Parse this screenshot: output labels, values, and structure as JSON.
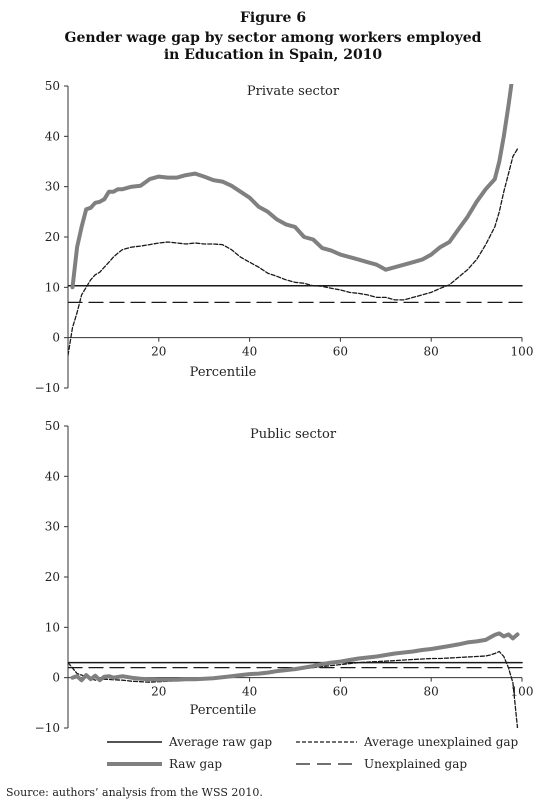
{
  "figure": {
    "label": "Figure 6",
    "title_lines": [
      "Gender wage gap by sector among workers employed",
      "in Education in Spain, 2010"
    ]
  },
  "legend": {
    "average_raw_gap": "Average raw gap",
    "average_unexplained_gap": "Average unexplained gap",
    "raw_gap": "Raw gap",
    "unexplained_gap": "Unexplained gap"
  },
  "source": "Source: authors’ analysis from the WSS 2010.",
  "chart_data": [
    {
      "type": "line",
      "panel_label": "Private sector",
      "xlabel": "Percentile",
      "ylabel": "",
      "xlim": [
        0,
        100
      ],
      "ylim": [
        -10,
        50
      ],
      "xticks": [
        20,
        40,
        60,
        80,
        100
      ],
      "yticks": [
        -10,
        0,
        10,
        20,
        30,
        40,
        50
      ],
      "grid": false,
      "series": [
        {
          "key": "raw_gap",
          "style": "thick-gray",
          "x": [
            1,
            2,
            3,
            4,
            5,
            6,
            7,
            8,
            9,
            10,
            11,
            12,
            14,
            16,
            18,
            20,
            22,
            24,
            26,
            28,
            30,
            32,
            34,
            36,
            38,
            40,
            42,
            44,
            46,
            48,
            50,
            52,
            54,
            56,
            58,
            60,
            62,
            64,
            66,
            68,
            70,
            72,
            74,
            76,
            78,
            80,
            82,
            84,
            86,
            88,
            90,
            92,
            94,
            95,
            96,
            97,
            98,
            99
          ],
          "y": [
            10,
            18,
            22,
            25.5,
            25.8,
            26.8,
            27,
            27.5,
            29,
            29,
            29.5,
            29.5,
            30,
            30.2,
            31.5,
            32,
            31.8,
            31.8,
            32.3,
            32.6,
            32,
            31.3,
            31,
            30.2,
            29,
            27.8,
            26,
            25,
            23.5,
            22.5,
            22,
            20,
            19.5,
            17.8,
            17.3,
            16.5,
            16,
            15.5,
            15,
            14.5,
            13.5,
            14,
            14.5,
            15,
            15.5,
            16.5,
            18,
            19,
            21.5,
            24,
            27,
            29.5,
            31.5,
            35,
            40,
            46,
            52.5,
            53
          ]
        },
        {
          "key": "unexplained_gap",
          "style": "thin-dashed",
          "x": [
            0,
            1,
            2,
            3,
            4,
            5,
            6,
            7,
            8,
            9,
            10,
            11,
            12,
            14,
            16,
            18,
            20,
            22,
            24,
            26,
            28,
            30,
            32,
            34,
            36,
            38,
            40,
            42,
            44,
            46,
            48,
            50,
            52,
            54,
            56,
            58,
            60,
            62,
            64,
            66,
            68,
            70,
            72,
            74,
            76,
            78,
            80,
            82,
            84,
            86,
            88,
            90,
            92,
            94,
            95,
            96,
            97,
            98,
            99
          ],
          "y": [
            -3.5,
            2,
            5,
            8.5,
            10,
            11.5,
            12.5,
            13,
            14,
            15,
            16,
            16.8,
            17.5,
            18,
            18.2,
            18.5,
            18.8,
            19,
            18.8,
            18.6,
            18.8,
            18.6,
            18.6,
            18.5,
            17.5,
            16,
            15,
            14,
            12.8,
            12.2,
            11.5,
            11,
            10.8,
            10.3,
            10.2,
            9.8,
            9.5,
            9,
            8.8,
            8.5,
            8,
            8,
            7.5,
            7.5,
            8,
            8.5,
            9,
            9.8,
            10.5,
            12,
            13.5,
            15.5,
            18.5,
            22,
            25,
            29,
            32.5,
            36,
            37.5
          ]
        },
        {
          "key": "average_raw_gap",
          "style": "solid-thin",
          "x": [
            0,
            100
          ],
          "y": [
            10.3,
            10.3
          ]
        },
        {
          "key": "average_unexplained_gap",
          "style": "long-dash",
          "x": [
            0,
            100
          ],
          "y": [
            7,
            7
          ]
        }
      ]
    },
    {
      "type": "line",
      "panel_label": "Public sector",
      "xlabel": "Percentile",
      "ylabel": "",
      "xlim": [
        0,
        100
      ],
      "ylim": [
        -10,
        50
      ],
      "xticks": [
        20,
        40,
        60,
        80,
        100
      ],
      "yticks": [
        -10,
        0,
        10,
        20,
        30,
        40,
        50
      ],
      "grid": false,
      "series": [
        {
          "key": "raw_gap",
          "style": "thick-gray",
          "x": [
            1,
            2,
            3,
            4,
            5,
            6,
            7,
            8,
            9,
            10,
            12,
            14,
            16,
            18,
            20,
            22,
            24,
            26,
            28,
            30,
            32,
            34,
            36,
            38,
            40,
            42,
            44,
            46,
            48,
            50,
            52,
            54,
            56,
            58,
            60,
            62,
            64,
            66,
            68,
            70,
            72,
            74,
            76,
            78,
            80,
            82,
            84,
            86,
            88,
            90,
            92,
            93,
            94,
            95,
            96,
            97,
            98,
            99
          ],
          "y": [
            0,
            0.3,
            -0.5,
            0.5,
            -0.3,
            0.4,
            -0.5,
            0.2,
            0.3,
            0,
            0.3,
            0,
            -0.2,
            -0.3,
            -0.4,
            -0.4,
            -0.4,
            -0.3,
            -0.3,
            -0.2,
            -0.1,
            0.1,
            0.3,
            0.5,
            0.7,
            0.8,
            1,
            1.3,
            1.5,
            1.7,
            2,
            2.3,
            2.7,
            3,
            3.2,
            3.5,
            3.8,
            4,
            4.2,
            4.5,
            4.8,
            5,
            5.2,
            5.5,
            5.7,
            6,
            6.3,
            6.6,
            7,
            7.2,
            7.5,
            8,
            8.5,
            8.8,
            8.2,
            8.6,
            7.8,
            8.6
          ]
        },
        {
          "key": "unexplained_gap",
          "style": "thin-dashed",
          "x": [
            0,
            2,
            4,
            6,
            8,
            10,
            12,
            14,
            16,
            18,
            20,
            22,
            24,
            26,
            28,
            30,
            32,
            34,
            36,
            38,
            40,
            42,
            44,
            46,
            48,
            50,
            52,
            54,
            56,
            58,
            60,
            62,
            64,
            66,
            68,
            70,
            72,
            74,
            76,
            78,
            80,
            82,
            84,
            86,
            88,
            90,
            92,
            93,
            94,
            95,
            96,
            97,
            98,
            99
          ],
          "y": [
            3,
            0.8,
            0.2,
            -0.5,
            -0.3,
            -0.4,
            -0.5,
            -0.7,
            -0.8,
            -0.9,
            -0.8,
            -0.7,
            -0.6,
            -0.5,
            -0.4,
            -0.3,
            -0.2,
            0,
            0.2,
            0.4,
            0.6,
            0.8,
            1,
            1.2,
            1.4,
            1.6,
            1.8,
            2,
            2.2,
            2.4,
            2.6,
            2.8,
            3,
            3.1,
            3.2,
            3.3,
            3.4,
            3.5,
            3.6,
            3.7,
            3.8,
            3.8,
            3.9,
            4,
            4.1,
            4.2,
            4.3,
            4.5,
            4.8,
            5.2,
            4.2,
            2,
            -1,
            -10
          ]
        },
        {
          "key": "average_raw_gap",
          "style": "solid-thin",
          "x": [
            0,
            100
          ],
          "y": [
            3,
            3
          ]
        },
        {
          "key": "average_unexplained_gap",
          "style": "long-dash",
          "x": [
            0,
            100
          ],
          "y": [
            2,
            2
          ]
        }
      ]
    }
  ],
  "colors": {
    "raw_gap": "#808080",
    "lines": "#1a1a1a",
    "axes": "#333333"
  }
}
